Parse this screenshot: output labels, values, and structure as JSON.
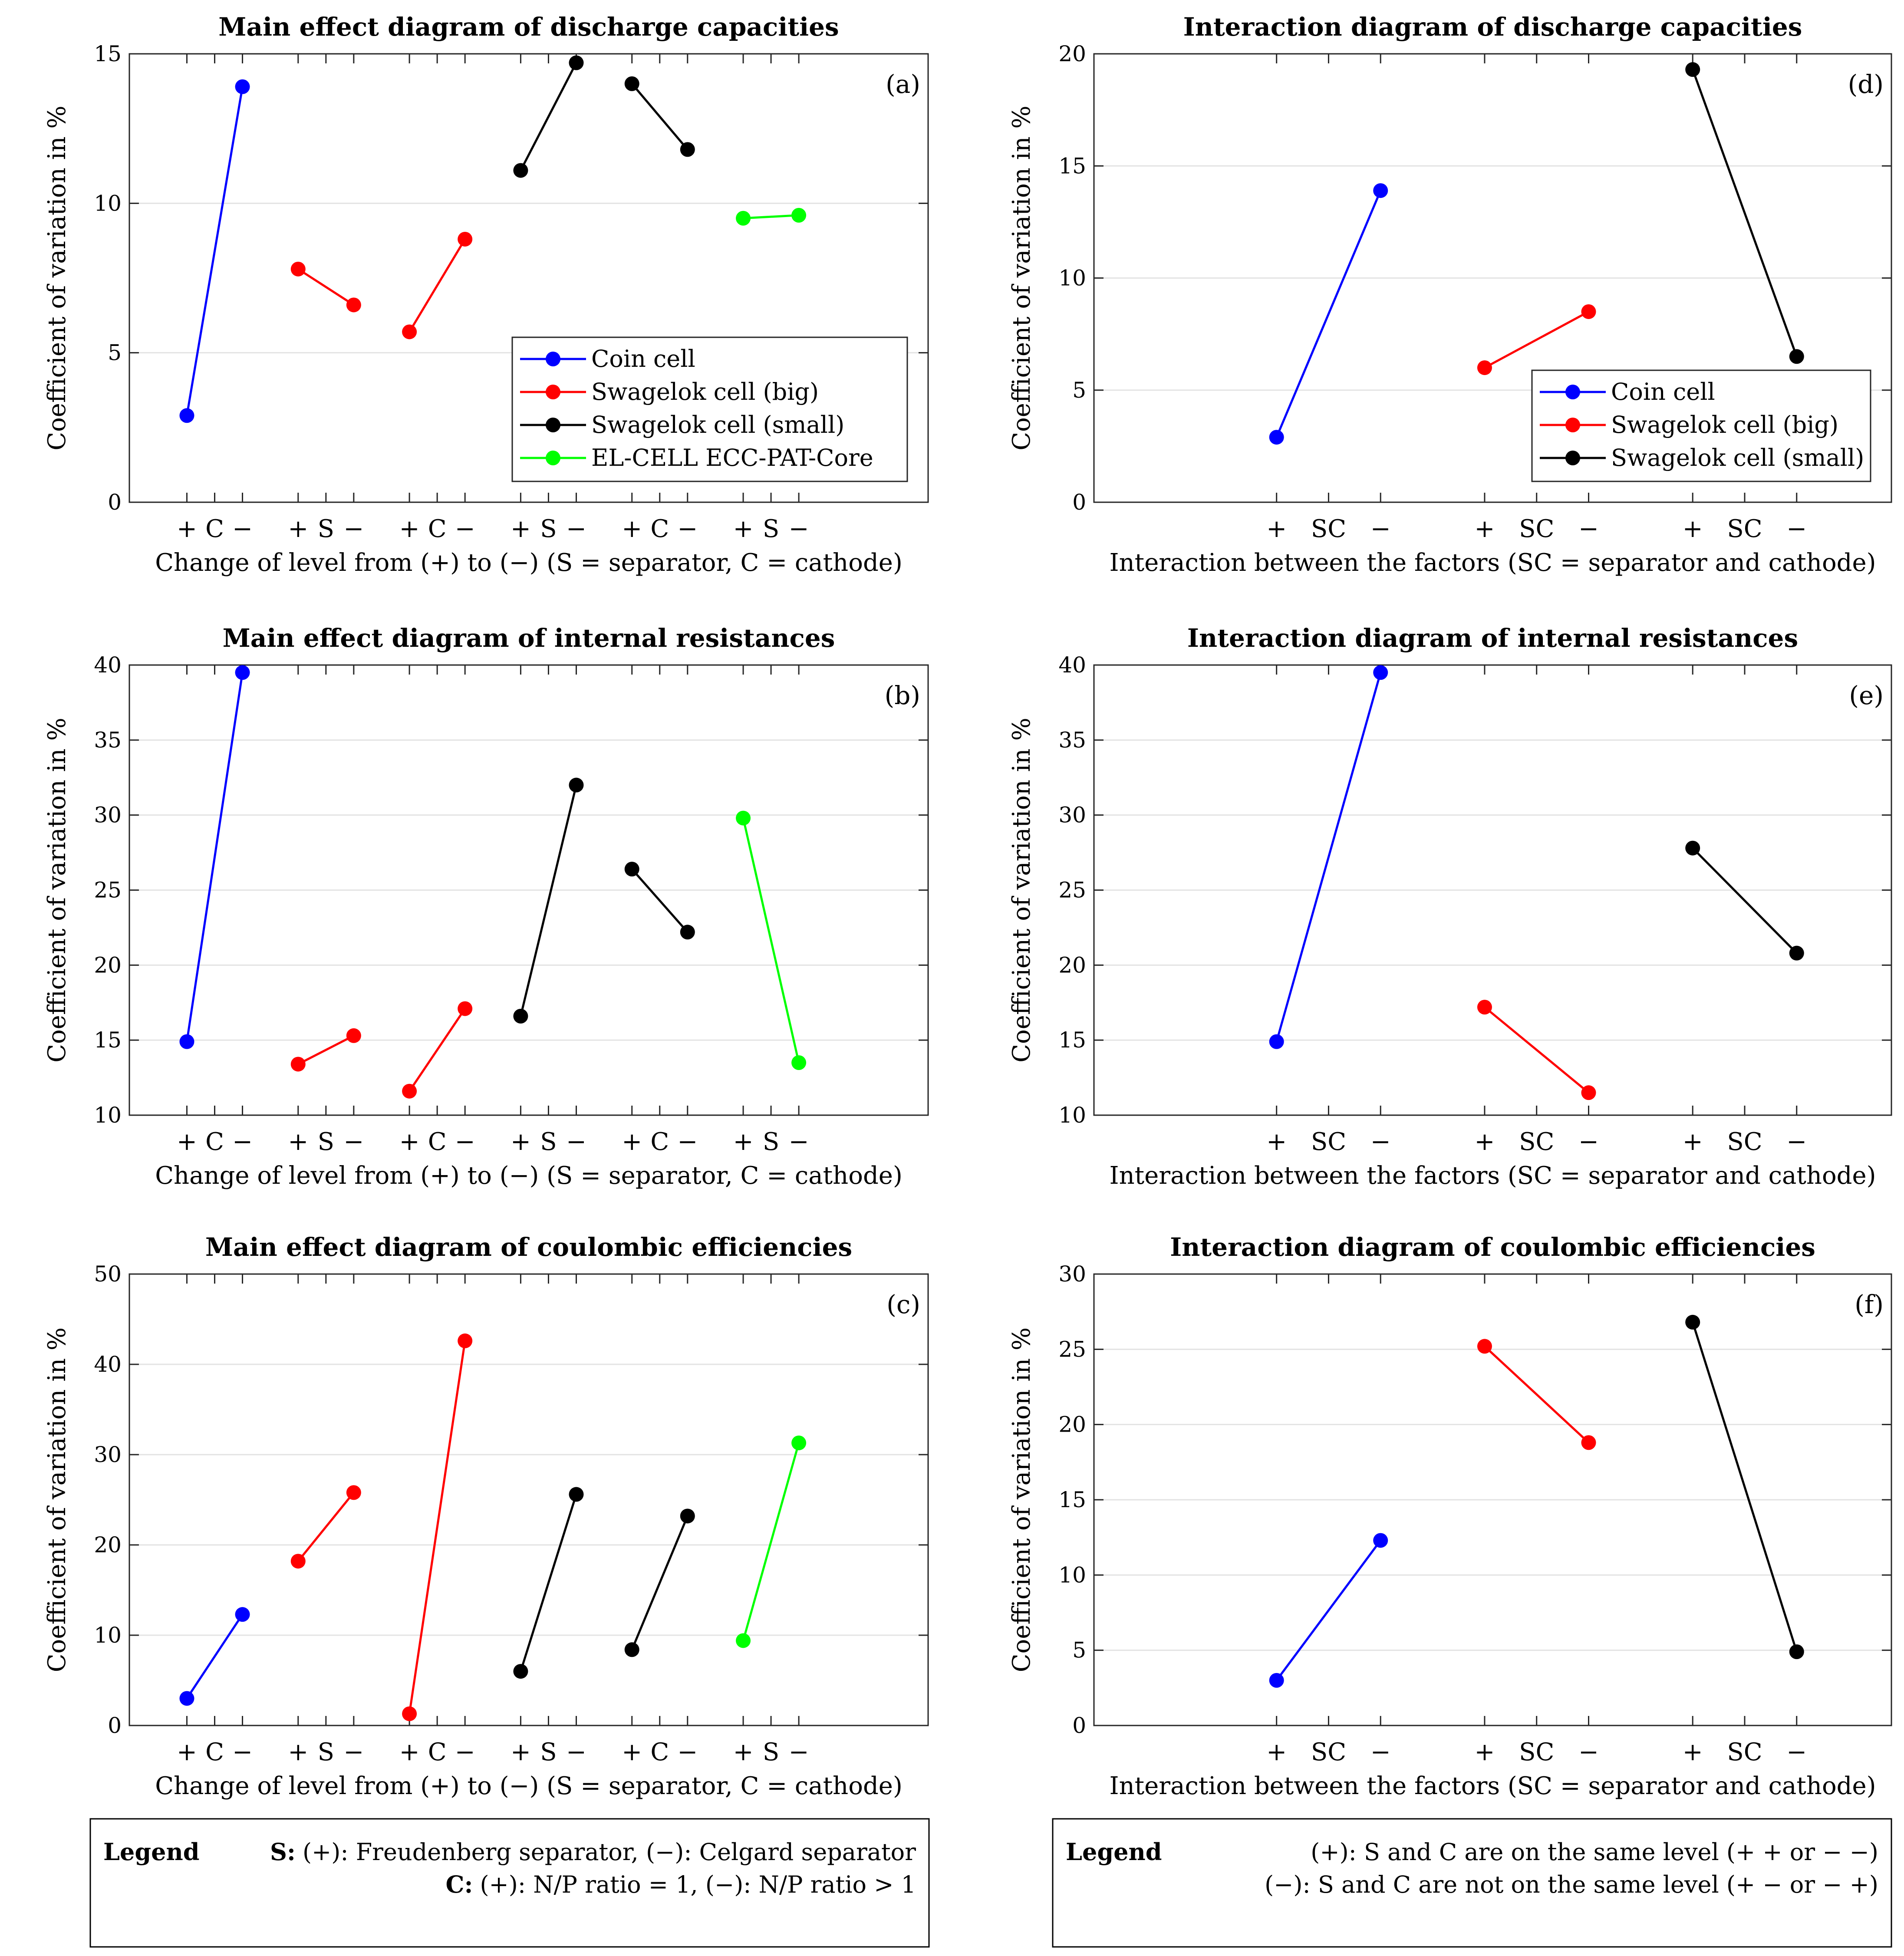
{
  "chart_data": [
    {
      "id": "a",
      "type": "line",
      "layout": "main",
      "title": "Main effect diagram of discharge capacities",
      "panel_label": "(a)",
      "ylabel": "Coefficient of variation in %",
      "xlabel": "Change of level from (+) to (−) (S = separator, C = cathode)",
      "ylim": [
        0,
        15
      ],
      "yticks": [
        0,
        5,
        10,
        15
      ],
      "groups": [
        {
          "factor": "C",
          "series": 0,
          "values": [
            2.9,
            13.9
          ]
        },
        {
          "factor": "S",
          "series": 1,
          "values": [
            7.8,
            6.6
          ]
        },
        {
          "factor": "C",
          "series": 1,
          "values": [
            5.7,
            8.8
          ]
        },
        {
          "factor": "S",
          "series": 2,
          "values": [
            11.1,
            14.7
          ]
        },
        {
          "factor": "C",
          "series": 2,
          "values": [
            14.0,
            11.8
          ]
        },
        {
          "factor": "S",
          "series": 3,
          "values": [
            9.5,
            9.6
          ]
        }
      ],
      "legend": {
        "position": "bottom-right",
        "entries": [
          0,
          1,
          2,
          3
        ]
      }
    },
    {
      "id": "b",
      "type": "line",
      "layout": "main",
      "title": "Main effect diagram of internal resistances",
      "panel_label": "(b)",
      "ylabel": "Coefficient of variation in %",
      "xlabel": "Change of level from (+) to (−) (S = separator, C = cathode)",
      "ylim": [
        10,
        40
      ],
      "yticks": [
        10,
        15,
        20,
        25,
        30,
        35,
        40
      ],
      "groups": [
        {
          "factor": "C",
          "series": 0,
          "values": [
            14.9,
            39.5
          ]
        },
        {
          "factor": "S",
          "series": 1,
          "values": [
            13.4,
            15.3
          ]
        },
        {
          "factor": "C",
          "series": 1,
          "values": [
            11.6,
            17.1
          ]
        },
        {
          "factor": "S",
          "series": 2,
          "values": [
            16.6,
            32.0
          ]
        },
        {
          "factor": "C",
          "series": 2,
          "values": [
            26.4,
            22.2
          ]
        },
        {
          "factor": "S",
          "series": 3,
          "values": [
            29.8,
            13.5
          ]
        }
      ]
    },
    {
      "id": "c",
      "type": "line",
      "layout": "main",
      "title": "Main effect diagram of coulombic efficiencies",
      "panel_label": "(c)",
      "ylabel": "Coefficient of variation in %",
      "xlabel": "Change of level from (+) to (−) (S = separator, C = cathode)",
      "ylim": [
        0,
        50
      ],
      "yticks": [
        0,
        10,
        20,
        30,
        40,
        50
      ],
      "groups": [
        {
          "factor": "C",
          "series": 0,
          "values": [
            3.0,
            12.3
          ]
        },
        {
          "factor": "S",
          "series": 1,
          "values": [
            18.2,
            25.8
          ]
        },
        {
          "factor": "C",
          "series": 1,
          "values": [
            1.3,
            42.6
          ]
        },
        {
          "factor": "S",
          "series": 2,
          "values": [
            6.0,
            25.6
          ]
        },
        {
          "factor": "C",
          "series": 2,
          "values": [
            8.4,
            23.2
          ]
        },
        {
          "factor": "S",
          "series": 3,
          "values": [
            9.4,
            31.3
          ]
        }
      ]
    },
    {
      "id": "d",
      "type": "line",
      "layout": "interaction",
      "title": "Interaction diagram of discharge capacities",
      "panel_label": "(d)",
      "ylabel": "Coefficient of variation in %",
      "xlabel": "Interaction between the factors (SC = separator and cathode)",
      "ylim": [
        0,
        20
      ],
      "yticks": [
        0,
        5,
        10,
        15,
        20
      ],
      "groups": [
        {
          "factor": "SC",
          "series": 0,
          "values": [
            2.9,
            13.9
          ]
        },
        {
          "factor": "SC",
          "series": 1,
          "values": [
            6.0,
            8.5
          ]
        },
        {
          "factor": "SC",
          "series": 2,
          "values": [
            19.3,
            6.5
          ]
        }
      ],
      "legend": {
        "position": "bottom-right",
        "entries": [
          0,
          1,
          2
        ]
      }
    },
    {
      "id": "e",
      "type": "line",
      "layout": "interaction",
      "title": "Interaction diagram of internal resistances",
      "panel_label": "(e)",
      "ylabel": "Coefficient of variation in %",
      "xlabel": "Interaction between the factors (SC = separator and cathode)",
      "ylim": [
        10,
        40
      ],
      "yticks": [
        10,
        15,
        20,
        25,
        30,
        35,
        40
      ],
      "groups": [
        {
          "factor": "SC",
          "series": 0,
          "values": [
            14.9,
            39.5
          ]
        },
        {
          "factor": "SC",
          "series": 1,
          "values": [
            17.2,
            11.5
          ]
        },
        {
          "factor": "SC",
          "series": 2,
          "values": [
            27.8,
            20.8
          ]
        }
      ]
    },
    {
      "id": "f",
      "type": "line",
      "layout": "interaction",
      "title": "Interaction diagram of coulombic efficiencies",
      "panel_label": "(f)",
      "ylabel": "Coefficient of variation in %",
      "xlabel": "Interaction between the factors (SC = separator and cathode)",
      "ylim": [
        0,
        30
      ],
      "yticks": [
        0,
        5,
        10,
        15,
        20,
        25,
        30
      ],
      "groups": [
        {
          "factor": "SC",
          "series": 0,
          "values": [
            3.0,
            12.3
          ]
        },
        {
          "factor": "SC",
          "series": 1,
          "values": [
            25.2,
            18.8
          ]
        },
        {
          "factor": "SC",
          "series": 2,
          "values": [
            26.8,
            4.9
          ]
        }
      ]
    }
  ],
  "series": [
    {
      "name": "Coin cell",
      "color": "#0000ff"
    },
    {
      "name": "Swagelok cell (big)",
      "color": "#ff0000"
    },
    {
      "name": "Swagelok cell (small)",
      "color": "#000000"
    },
    {
      "name": "EL-CELL ECC-PAT-Core",
      "color": "#00ff00"
    }
  ],
  "level_plus": "+",
  "level_minus": "−",
  "notes": {
    "left": {
      "title": "Legend",
      "line1_key": "S:",
      "line1_text": "(+): Freudenberg separator, (−): Celgard separator",
      "line2_key": "C:",
      "line2_text": "(+): N/P ratio = 1, (−): N/P ratio > 1"
    },
    "right": {
      "title": "Legend",
      "line1_text": "(+): S and C are on the same level (+ + or − −)",
      "line2_text": "(−): S and C are not on the same level (+ − or − +)"
    }
  }
}
